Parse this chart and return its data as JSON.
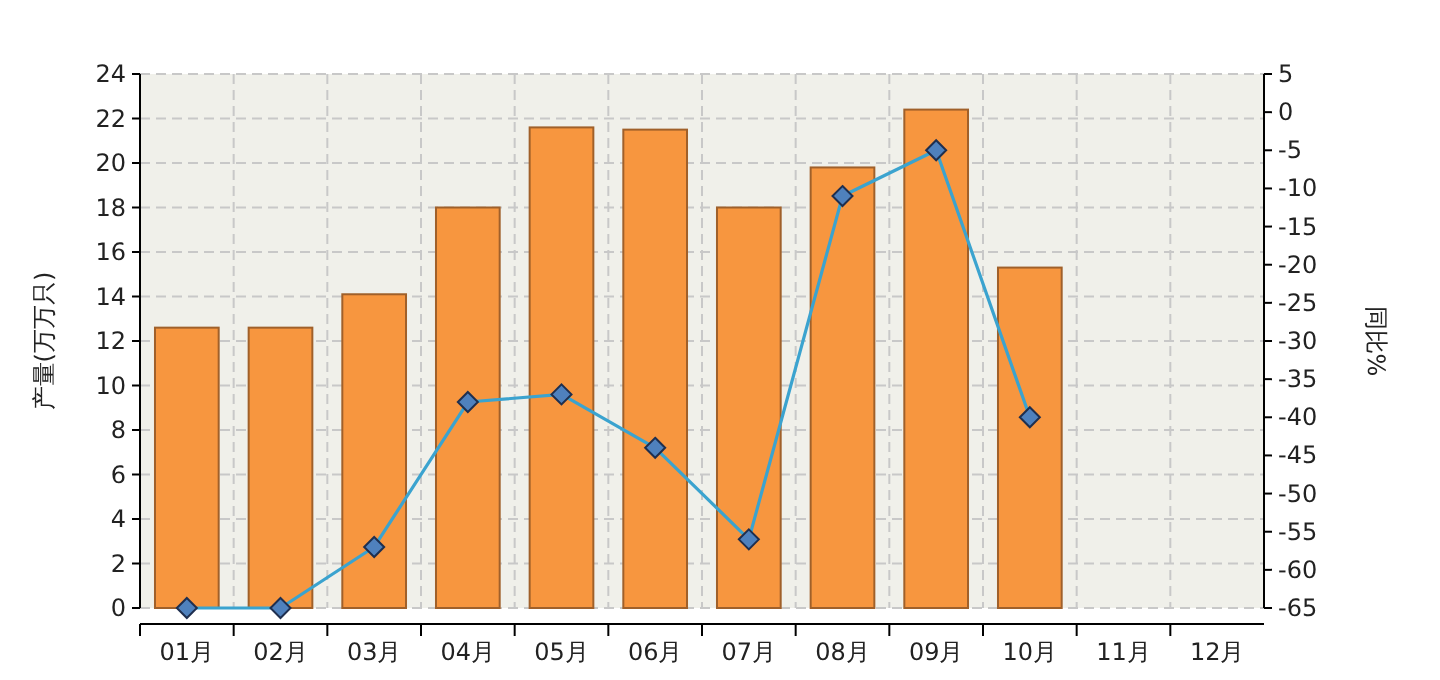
{
  "chart_data": {
    "type": "bar",
    "ylabel": "产量(万万只)",
    "y2label": "同比%",
    "categories": [
      "01月",
      "02月",
      "03月",
      "04月",
      "05月",
      "06月",
      "07月",
      "08月",
      "09月",
      "10月",
      "11月",
      "12月"
    ],
    "series": [
      {
        "color": "#f7963f",
        "values": [
          12.6,
          12.6,
          14.1,
          18.0,
          21.6,
          21.5,
          18.0,
          19.8,
          22.4,
          15.3,
          null,
          null
        ]
      },
      {
        "type": "line",
        "axis": "y2",
        "color": "#3ba3cf",
        "marker": "diamond",
        "values": [
          -65,
          -65,
          -57,
          -38,
          -37,
          -44,
          -56,
          -11,
          -5,
          -40,
          null,
          null
        ]
      }
    ],
    "ylim": [
      0,
      24
    ],
    "yticks": [
      0,
      2,
      4,
      6,
      8,
      10,
      12,
      14,
      16,
      18,
      20,
      22,
      24
    ],
    "y2lim": [
      -65,
      5
    ],
    "y2ticks": [
      -65,
      -60,
      -55,
      -50,
      -45,
      -40,
      -35,
      -30,
      -25,
      -20,
      -15,
      -10,
      -5,
      0,
      5
    ],
    "grid": true
  }
}
